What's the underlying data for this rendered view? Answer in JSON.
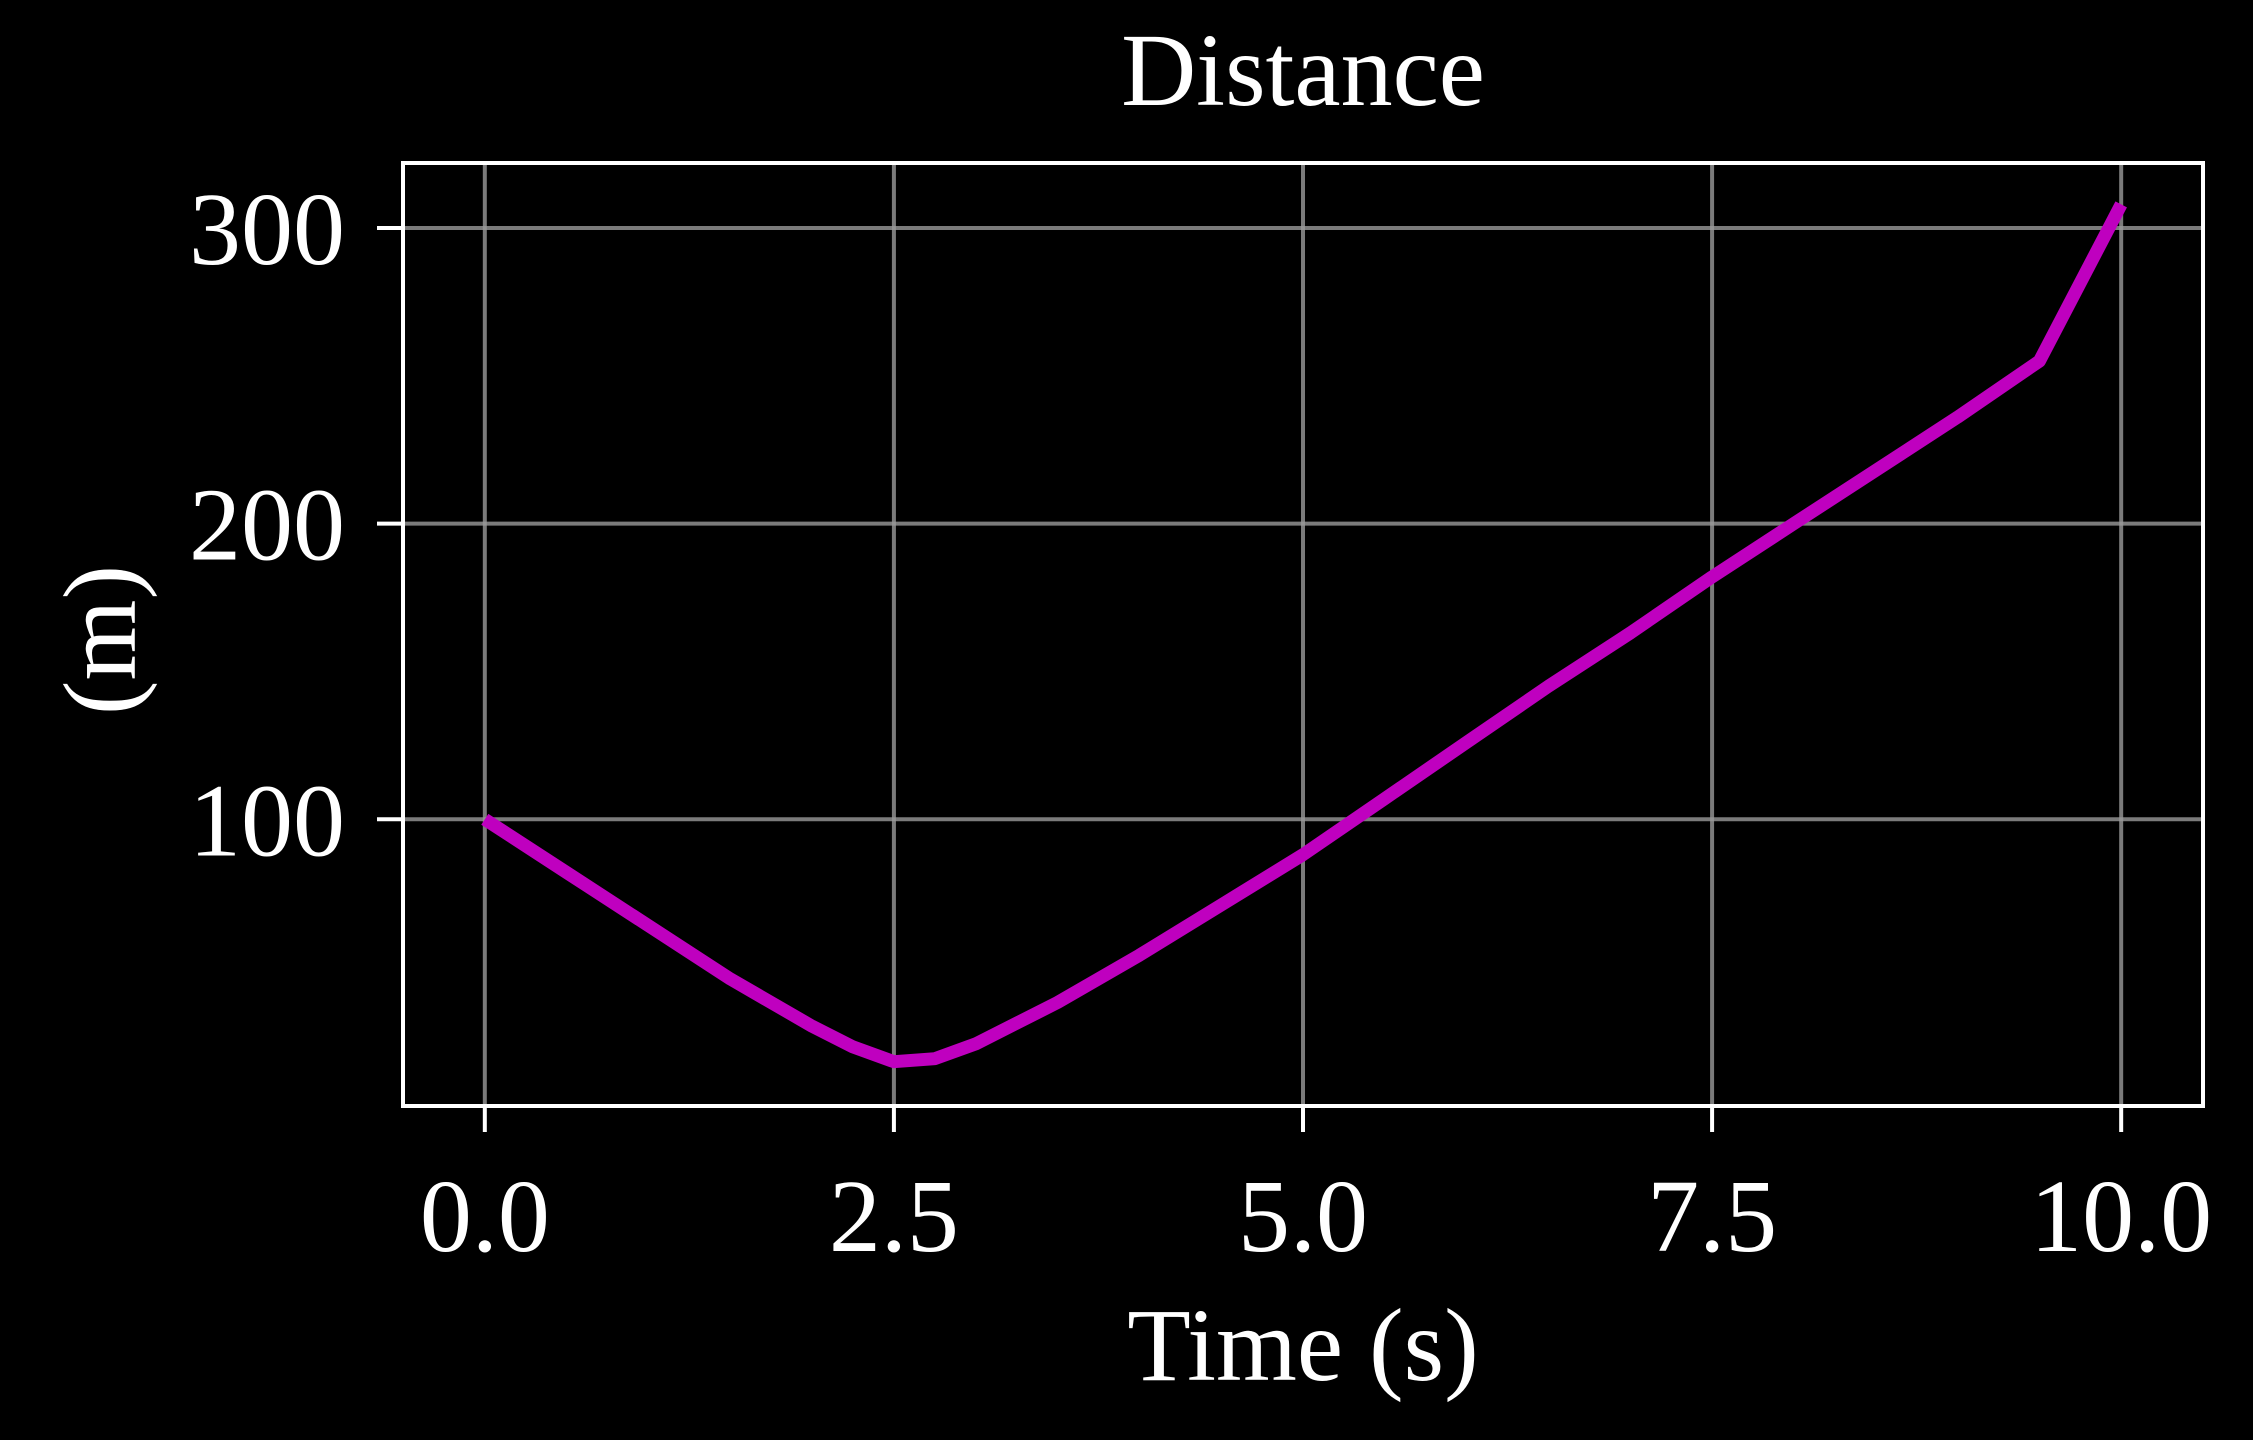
{
  "chart_data": {
    "type": "line",
    "title": "Distance",
    "xlabel": "Time (s)",
    "ylabel": "(m)",
    "xlim": [
      -0.5,
      10.5
    ],
    "ylim": [
      3,
      322
    ],
    "xticks": [
      0.0,
      2.5,
      5.0,
      7.5,
      10.0
    ],
    "xtick_labels": [
      "0.0",
      "2.5",
      "5.0",
      "7.5",
      "10.0"
    ],
    "yticks": [
      100,
      200,
      300
    ],
    "ytick_labels": [
      "100",
      "200",
      "300"
    ],
    "grid": true,
    "series": [
      {
        "color": "#bf00bf",
        "x": [
          0,
          0.5,
          1.0,
          1.5,
          2.0,
          2.25,
          2.5,
          2.75,
          3.0,
          3.5,
          4.0,
          4.5,
          5.0,
          5.5,
          6.0,
          6.5,
          7.0,
          7.5,
          8.0,
          8.5,
          9.0,
          9.5,
          10.0
        ],
        "y": [
          100,
          82,
          64,
          46,
          30,
          23,
          18,
          19,
          24,
          38,
          54,
          71,
          88,
          107,
          126,
          145,
          163,
          182,
          200,
          218,
          236,
          255,
          308
        ]
      }
    ]
  },
  "colors": {
    "background": "#000000",
    "axes": "#ffffff",
    "grid": "#9a9a9a",
    "line": "#bf00bf"
  }
}
